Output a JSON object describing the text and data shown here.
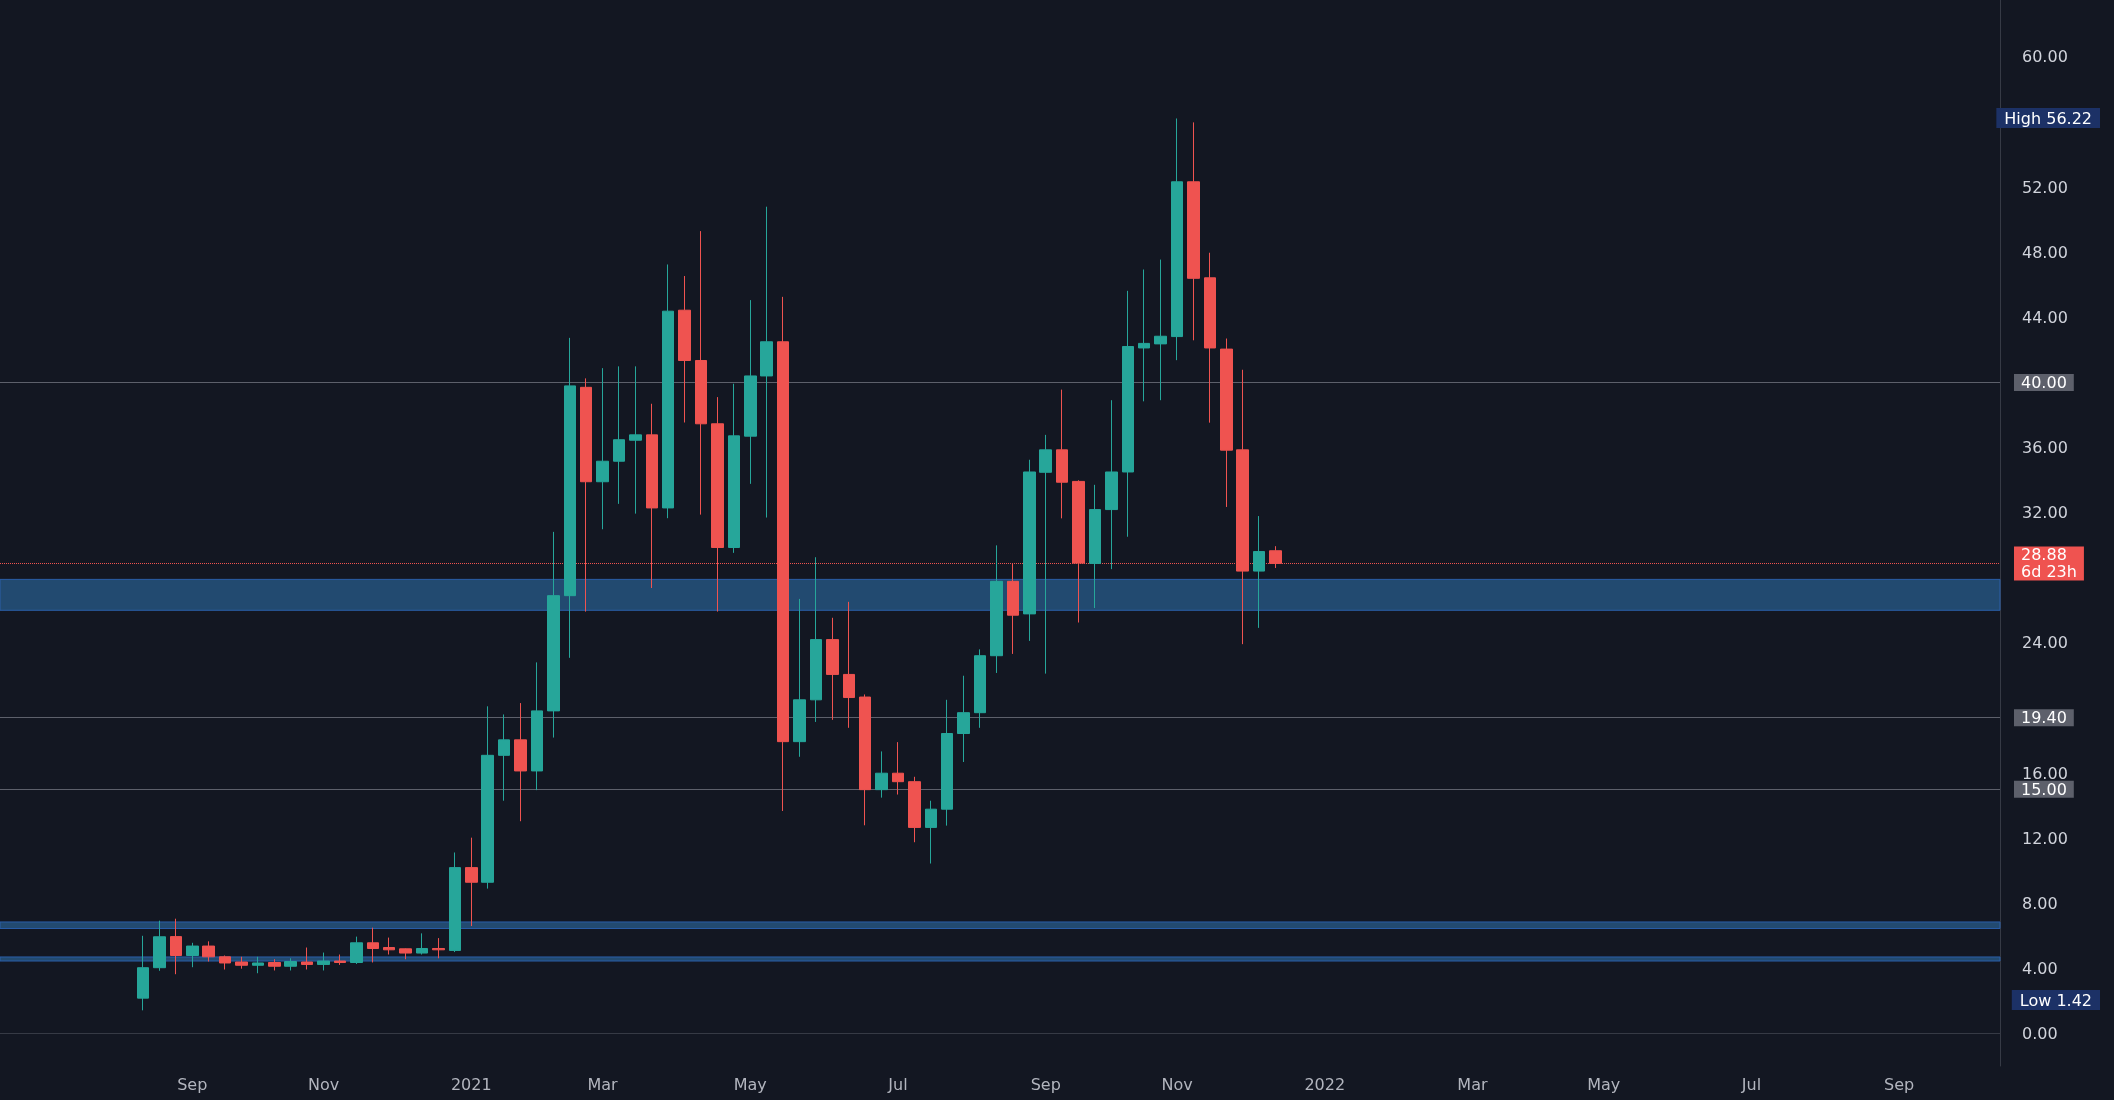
{
  "chart_data": {
    "type": "candlestick",
    "x": [
      "2020-08-17",
      "2020-08-24",
      "2020-08-31",
      "2020-09-07",
      "2020-09-14",
      "2020-09-21",
      "2020-09-28",
      "2020-10-05",
      "2020-10-12",
      "2020-10-19",
      "2020-10-26",
      "2020-11-02",
      "2020-11-09",
      "2020-11-16",
      "2020-11-23",
      "2020-11-30",
      "2020-12-07",
      "2020-12-14",
      "2020-12-21",
      "2020-12-28",
      "2021-01-04",
      "2021-01-11",
      "2021-01-18",
      "2021-01-25",
      "2021-02-01",
      "2021-02-08",
      "2021-02-15",
      "2021-02-22",
      "2021-03-01",
      "2021-03-08",
      "2021-03-15",
      "2021-03-22",
      "2021-03-29",
      "2021-04-05",
      "2021-04-12",
      "2021-04-19",
      "2021-04-26",
      "2021-05-03",
      "2021-05-10",
      "2021-05-17",
      "2021-05-24",
      "2021-05-31",
      "2021-06-07",
      "2021-06-14",
      "2021-06-21",
      "2021-06-28",
      "2021-07-05",
      "2021-07-12",
      "2021-07-19",
      "2021-07-26",
      "2021-08-02",
      "2021-08-09",
      "2021-08-16",
      "2021-08-23",
      "2021-08-30",
      "2021-09-06",
      "2021-09-13",
      "2021-09-20",
      "2021-09-27",
      "2021-10-04",
      "2021-10-11",
      "2021-10-18",
      "2021-10-25",
      "2021-11-01",
      "2021-11-08",
      "2021-11-15",
      "2021-11-22",
      "2021-11-29",
      "2021-12-06",
      "2021-12-13"
    ],
    "ohlc": [
      [
        2.17,
        6.0,
        1.42,
        4.04
      ],
      [
        4.04,
        6.93,
        3.85,
        5.94
      ],
      [
        5.95,
        7.05,
        3.64,
        4.79
      ],
      [
        4.79,
        5.57,
        4.07,
        5.37
      ],
      [
        5.37,
        5.66,
        4.42,
        4.71
      ],
      [
        4.71,
        4.79,
        3.93,
        4.33
      ],
      [
        4.39,
        4.71,
        3.98,
        4.19
      ],
      [
        4.19,
        4.71,
        3.7,
        4.33
      ],
      [
        4.36,
        4.56,
        3.87,
        4.13
      ],
      [
        4.13,
        4.62,
        3.87,
        4.42
      ],
      [
        4.39,
        5.28,
        3.93,
        4.24
      ],
      [
        4.24,
        4.97,
        3.87,
        4.45
      ],
      [
        4.45,
        4.85,
        4.21,
        4.36
      ],
      [
        4.36,
        5.95,
        4.27,
        5.57
      ],
      [
        5.57,
        6.5,
        4.36,
        5.22
      ],
      [
        5.28,
        5.89,
        4.85,
        5.14
      ],
      [
        5.2,
        5.22,
        4.56,
        4.94
      ],
      [
        4.94,
        6.15,
        4.85,
        5.22
      ],
      [
        5.22,
        5.86,
        4.62,
        5.14
      ],
      [
        5.1,
        11.12,
        5.0,
        10.19
      ],
      [
        10.19,
        12.03,
        6.6,
        9.29
      ],
      [
        9.29,
        20.1,
        8.9,
        17.09
      ],
      [
        17.09,
        19.6,
        14.3,
        18.04
      ],
      [
        18.04,
        20.3,
        13.04,
        16.13
      ],
      [
        16.13,
        22.8,
        14.95,
        19.82
      ],
      [
        19.82,
        30.82,
        18.18,
        26.9
      ],
      [
        26.9,
        42.74,
        23.08,
        39.79
      ],
      [
        39.7,
        40.25,
        25.92,
        33.9
      ],
      [
        33.9,
        40.88,
        30.98,
        35.16
      ],
      [
        35.16,
        40.99,
        32.54,
        36.48
      ],
      [
        36.45,
        40.99,
        31.94,
        36.78
      ],
      [
        36.78,
        38.69,
        27.37,
        32.29
      ],
      [
        32.29,
        47.25,
        31.66,
        44.38
      ],
      [
        44.44,
        46.54,
        37.54,
        41.35
      ],
      [
        41.35,
        49.3,
        31.88,
        37.46
      ],
      [
        37.46,
        39.1,
        25.92,
        29.86
      ],
      [
        29.86,
        39.92,
        29.53,
        36.72
      ],
      [
        36.7,
        45.06,
        33.77,
        40.4
      ],
      [
        40.4,
        50.8,
        31.7,
        42.5
      ],
      [
        42.5,
        45.26,
        13.67,
        17.93
      ],
      [
        17.93,
        26.7,
        17.0,
        20.5
      ],
      [
        20.5,
        29.26,
        19.14,
        24.2
      ],
      [
        24.2,
        25.54,
        19.27,
        22.06
      ],
      [
        22.06,
        26.52,
        18.78,
        20.64
      ],
      [
        20.67,
        20.83,
        12.79,
        14.98
      ],
      [
        14.98,
        17.33,
        14.49,
        15.99
      ],
      [
        15.99,
        17.9,
        14.68,
        15.47
      ],
      [
        15.47,
        15.77,
        11.75,
        12.66
      ],
      [
        12.66,
        14.3,
        10.44,
        13.78
      ],
      [
        13.78,
        20.5,
        12.77,
        18.43
      ],
      [
        18.43,
        21.98,
        16.68,
        19.71
      ],
      [
        19.71,
        23.6,
        18.78,
        23.21
      ],
      [
        23.21,
        29.99,
        22.15,
        27.78
      ],
      [
        27.78,
        28.9,
        23.32,
        25.7
      ],
      [
        25.78,
        35.25,
        24.12,
        34.5
      ],
      [
        34.48,
        36.78,
        22.11,
        35.86
      ],
      [
        35.86,
        39.56,
        31.65,
        33.87
      ],
      [
        33.92,
        33.99,
        25.25,
        28.9
      ],
      [
        28.88,
        33.71,
        26.14,
        32.19
      ],
      [
        32.19,
        38.91,
        28.53,
        34.5
      ],
      [
        34.5,
        45.63,
        30.52,
        42.21
      ],
      [
        42.12,
        46.94,
        38.84,
        42.4
      ],
      [
        42.37,
        47.55,
        38.91,
        42.84
      ],
      [
        42.82,
        56.22,
        41.37,
        52.33
      ],
      [
        52.33,
        55.98,
        42.59,
        46.4
      ],
      [
        46.43,
        47.97,
        37.53,
        42.12
      ],
      [
        42.05,
        42.7,
        32.35,
        35.84
      ],
      [
        35.86,
        40.78,
        23.92,
        28.41
      ],
      [
        28.41,
        31.79,
        24.92,
        29.61
      ],
      [
        29.66,
        29.94,
        28.6,
        28.88
      ]
    ],
    "xlim": [
      "2020-06-17",
      "2022-10-18"
    ],
    "xticks": [
      {
        "value": "2020-09-07",
        "label": "Sep"
      },
      {
        "value": "2020-11-02",
        "label": "Nov"
      },
      {
        "value": "2021-01-04",
        "label": "2021"
      },
      {
        "value": "2021-03-01",
        "label": "Mar"
      },
      {
        "value": "2021-05-03",
        "label": "May"
      },
      {
        "value": "2021-07-05",
        "label": "Jul"
      },
      {
        "value": "2021-09-06",
        "label": "Sep"
      },
      {
        "value": "2021-11-01",
        "label": "Nov"
      },
      {
        "value": "2022-01-03",
        "label": "2022"
      },
      {
        "value": "2022-03-07",
        "label": "Mar"
      },
      {
        "value": "2022-05-02",
        "label": "May"
      },
      {
        "value": "2022-07-04",
        "label": "Jul"
      },
      {
        "value": "2022-09-05",
        "label": "Sep"
      }
    ],
    "ylim": [
      -2,
      63.5
    ],
    "yticks": [
      {
        "value": 0,
        "label": "0.00"
      },
      {
        "value": 4,
        "label": "4.00"
      },
      {
        "value": 8,
        "label": "8.00"
      },
      {
        "value": 12,
        "label": "12.00"
      },
      {
        "value": 16,
        "label": "16.00"
      },
      {
        "value": 24,
        "label": "24.00"
      },
      {
        "value": 32,
        "label": "32.00"
      },
      {
        "value": 36,
        "label": "36.00"
      },
      {
        "value": 44,
        "label": "44.00"
      },
      {
        "value": 48,
        "label": "48.00"
      },
      {
        "value": 52,
        "label": "52.00"
      },
      {
        "value": 60,
        "label": "60.00"
      }
    ],
    "grid": false,
    "ref_lines": [
      {
        "axis": "y",
        "value": 40,
        "label": "40.00",
        "color": "#5d606b",
        "line_style": "solid"
      },
      {
        "axis": "y",
        "value": 19.4,
        "label": "19.40",
        "color": "#5d606b",
        "line_style": "solid"
      },
      {
        "axis": "y",
        "value": 15,
        "label": "15.00",
        "color": "#5d606b",
        "line_style": "solid"
      },
      {
        "axis": "y",
        "value": 28.88,
        "label": "28.88\n6d 23h",
        "color": "#ef5350",
        "line_style": "dotted"
      }
    ],
    "bands": [
      {
        "axis": "y",
        "from": 26.0,
        "to": 27.9,
        "color": "#224a70"
      },
      {
        "axis": "y",
        "from": 6.45,
        "to": 6.85,
        "color": "#224a70"
      },
      {
        "axis": "y",
        "from": 4.45,
        "to": 4.7,
        "color": "#224a70"
      }
    ],
    "annotations": [
      "High 56.22",
      "Low 1.42"
    ]
  }
}
